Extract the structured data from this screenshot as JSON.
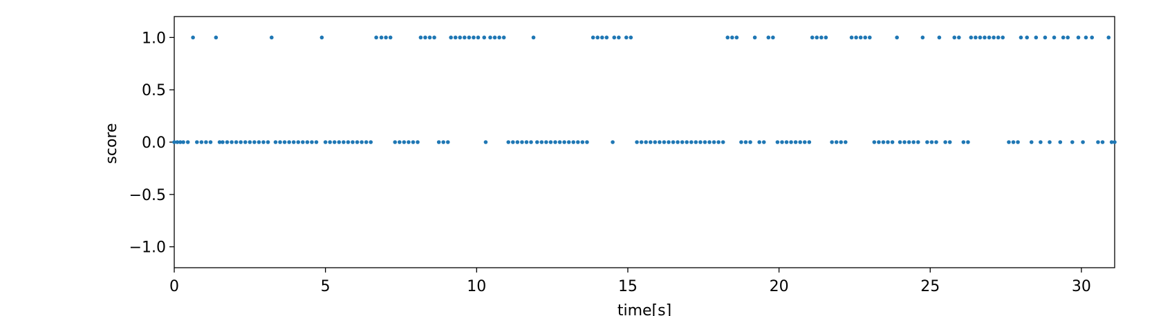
{
  "chart_data": {
    "type": "scatter",
    "xlabel": "time[s]",
    "ylabel": "score",
    "xlim": [
      0,
      31.1
    ],
    "ylim": [
      -1.2,
      1.2
    ],
    "x_ticks": [
      0,
      5,
      10,
      15,
      20,
      25,
      30
    ],
    "x_tick_labels": [
      "0",
      "5",
      "10",
      "15",
      "20",
      "25",
      "30"
    ],
    "y_ticks": [
      1.0,
      0.5,
      0.0,
      -0.5,
      -1.0
    ],
    "y_tick_labels": [
      "1.0",
      "0.5",
      "0.0",
      "−0.5",
      "−1.0"
    ],
    "grid": false,
    "marker_color": "#1f77b4",
    "series": [
      {
        "points": [
          [
            0.0,
            0
          ],
          [
            0.1,
            0
          ],
          [
            0.2,
            0
          ],
          [
            0.3,
            0
          ],
          [
            0.45,
            0
          ],
          [
            0.62,
            1
          ],
          [
            0.75,
            0
          ],
          [
            0.9,
            0
          ],
          [
            1.05,
            0
          ],
          [
            1.2,
            0
          ],
          [
            1.38,
            1
          ],
          [
            1.5,
            0
          ],
          [
            1.6,
            0
          ],
          [
            1.75,
            0
          ],
          [
            1.9,
            0
          ],
          [
            2.05,
            0
          ],
          [
            2.2,
            0
          ],
          [
            2.35,
            0
          ],
          [
            2.5,
            0
          ],
          [
            2.65,
            0
          ],
          [
            2.8,
            0
          ],
          [
            2.95,
            0
          ],
          [
            3.1,
            0
          ],
          [
            3.22,
            1
          ],
          [
            3.35,
            0
          ],
          [
            3.5,
            0
          ],
          [
            3.65,
            0
          ],
          [
            3.8,
            0
          ],
          [
            3.95,
            0
          ],
          [
            4.1,
            0
          ],
          [
            4.25,
            0
          ],
          [
            4.4,
            0
          ],
          [
            4.55,
            0
          ],
          [
            4.7,
            0
          ],
          [
            4.88,
            1
          ],
          [
            5.0,
            0
          ],
          [
            5.15,
            0
          ],
          [
            5.3,
            0
          ],
          [
            5.45,
            0
          ],
          [
            5.6,
            0
          ],
          [
            5.75,
            0
          ],
          [
            5.9,
            0
          ],
          [
            6.05,
            0
          ],
          [
            6.2,
            0
          ],
          [
            6.35,
            0
          ],
          [
            6.5,
            0
          ],
          [
            6.68,
            1
          ],
          [
            6.85,
            1
          ],
          [
            7.0,
            1
          ],
          [
            7.15,
            1
          ],
          [
            7.3,
            0
          ],
          [
            7.45,
            0
          ],
          [
            7.6,
            0
          ],
          [
            7.75,
            0
          ],
          [
            7.9,
            0
          ],
          [
            8.05,
            0
          ],
          [
            8.15,
            1
          ],
          [
            8.3,
            1
          ],
          [
            8.45,
            1
          ],
          [
            8.6,
            1
          ],
          [
            8.75,
            0
          ],
          [
            8.9,
            0
          ],
          [
            9.05,
            0
          ],
          [
            9.15,
            1
          ],
          [
            9.3,
            1
          ],
          [
            9.45,
            1
          ],
          [
            9.6,
            1
          ],
          [
            9.75,
            1
          ],
          [
            9.9,
            1
          ],
          [
            10.05,
            1
          ],
          [
            10.25,
            1
          ],
          [
            10.3,
            0
          ],
          [
            10.45,
            1
          ],
          [
            10.6,
            1
          ],
          [
            10.75,
            1
          ],
          [
            10.9,
            1
          ],
          [
            11.05,
            0
          ],
          [
            11.2,
            0
          ],
          [
            11.35,
            0
          ],
          [
            11.5,
            0
          ],
          [
            11.65,
            0
          ],
          [
            11.8,
            0
          ],
          [
            11.88,
            1
          ],
          [
            12.0,
            0
          ],
          [
            12.15,
            0
          ],
          [
            12.3,
            0
          ],
          [
            12.45,
            0
          ],
          [
            12.6,
            0
          ],
          [
            12.75,
            0
          ],
          [
            12.9,
            0
          ],
          [
            13.05,
            0
          ],
          [
            13.2,
            0
          ],
          [
            13.35,
            0
          ],
          [
            13.5,
            0
          ],
          [
            13.65,
            0
          ],
          [
            13.85,
            1
          ],
          [
            14.0,
            1
          ],
          [
            14.15,
            1
          ],
          [
            14.3,
            1
          ],
          [
            14.5,
            0
          ],
          [
            14.55,
            1
          ],
          [
            14.7,
            1
          ],
          [
            14.95,
            1
          ],
          [
            15.1,
            1
          ],
          [
            15.3,
            0
          ],
          [
            15.45,
            0
          ],
          [
            15.6,
            0
          ],
          [
            15.75,
            0
          ],
          [
            15.9,
            0
          ],
          [
            16.05,
            0
          ],
          [
            16.2,
            0
          ],
          [
            16.35,
            0
          ],
          [
            16.5,
            0
          ],
          [
            16.65,
            0
          ],
          [
            16.8,
            0
          ],
          [
            16.95,
            0
          ],
          [
            17.1,
            0
          ],
          [
            17.25,
            0
          ],
          [
            17.4,
            0
          ],
          [
            17.55,
            0
          ],
          [
            17.7,
            0
          ],
          [
            17.85,
            0
          ],
          [
            18.0,
            0
          ],
          [
            18.15,
            0
          ],
          [
            18.3,
            1
          ],
          [
            18.45,
            1
          ],
          [
            18.6,
            1
          ],
          [
            18.75,
            0
          ],
          [
            18.9,
            0
          ],
          [
            19.05,
            0
          ],
          [
            19.2,
            1
          ],
          [
            19.35,
            0
          ],
          [
            19.5,
            0
          ],
          [
            19.65,
            1
          ],
          [
            19.8,
            1
          ],
          [
            19.95,
            0
          ],
          [
            20.1,
            0
          ],
          [
            20.25,
            0
          ],
          [
            20.4,
            0
          ],
          [
            20.55,
            0
          ],
          [
            20.7,
            0
          ],
          [
            20.85,
            0
          ],
          [
            21.0,
            0
          ],
          [
            21.1,
            1
          ],
          [
            21.25,
            1
          ],
          [
            21.4,
            1
          ],
          [
            21.55,
            1
          ],
          [
            21.75,
            0
          ],
          [
            21.9,
            0
          ],
          [
            22.05,
            0
          ],
          [
            22.2,
            0
          ],
          [
            22.4,
            1
          ],
          [
            22.55,
            1
          ],
          [
            22.7,
            1
          ],
          [
            22.85,
            1
          ],
          [
            23.0,
            1
          ],
          [
            23.15,
            0
          ],
          [
            23.3,
            0
          ],
          [
            23.45,
            0
          ],
          [
            23.6,
            0
          ],
          [
            23.75,
            0
          ],
          [
            23.9,
            1
          ],
          [
            24.0,
            0
          ],
          [
            24.15,
            0
          ],
          [
            24.3,
            0
          ],
          [
            24.45,
            0
          ],
          [
            24.6,
            0
          ],
          [
            24.75,
            1
          ],
          [
            24.9,
            0
          ],
          [
            25.05,
            0
          ],
          [
            25.2,
            0
          ],
          [
            25.3,
            1
          ],
          [
            25.5,
            0
          ],
          [
            25.65,
            0
          ],
          [
            25.8,
            1
          ],
          [
            25.95,
            1
          ],
          [
            26.1,
            0
          ],
          [
            26.25,
            0
          ],
          [
            26.35,
            1
          ],
          [
            26.5,
            1
          ],
          [
            26.65,
            1
          ],
          [
            26.8,
            1
          ],
          [
            26.95,
            1
          ],
          [
            27.1,
            1
          ],
          [
            27.25,
            1
          ],
          [
            27.4,
            1
          ],
          [
            27.6,
            0
          ],
          [
            27.75,
            0
          ],
          [
            27.9,
            0
          ],
          [
            28.0,
            1
          ],
          [
            28.2,
            1
          ],
          [
            28.35,
            0
          ],
          [
            28.5,
            1
          ],
          [
            28.65,
            0
          ],
          [
            28.8,
            1
          ],
          [
            28.95,
            0
          ],
          [
            29.1,
            1
          ],
          [
            29.3,
            0
          ],
          [
            29.4,
            1
          ],
          [
            29.55,
            1
          ],
          [
            29.7,
            0
          ],
          [
            29.9,
            1
          ],
          [
            30.05,
            0
          ],
          [
            30.15,
            1
          ],
          [
            30.35,
            1
          ],
          [
            30.55,
            0
          ],
          [
            30.7,
            0
          ],
          [
            30.9,
            1
          ],
          [
            31.0,
            0
          ],
          [
            31.1,
            0
          ]
        ]
      }
    ]
  }
}
